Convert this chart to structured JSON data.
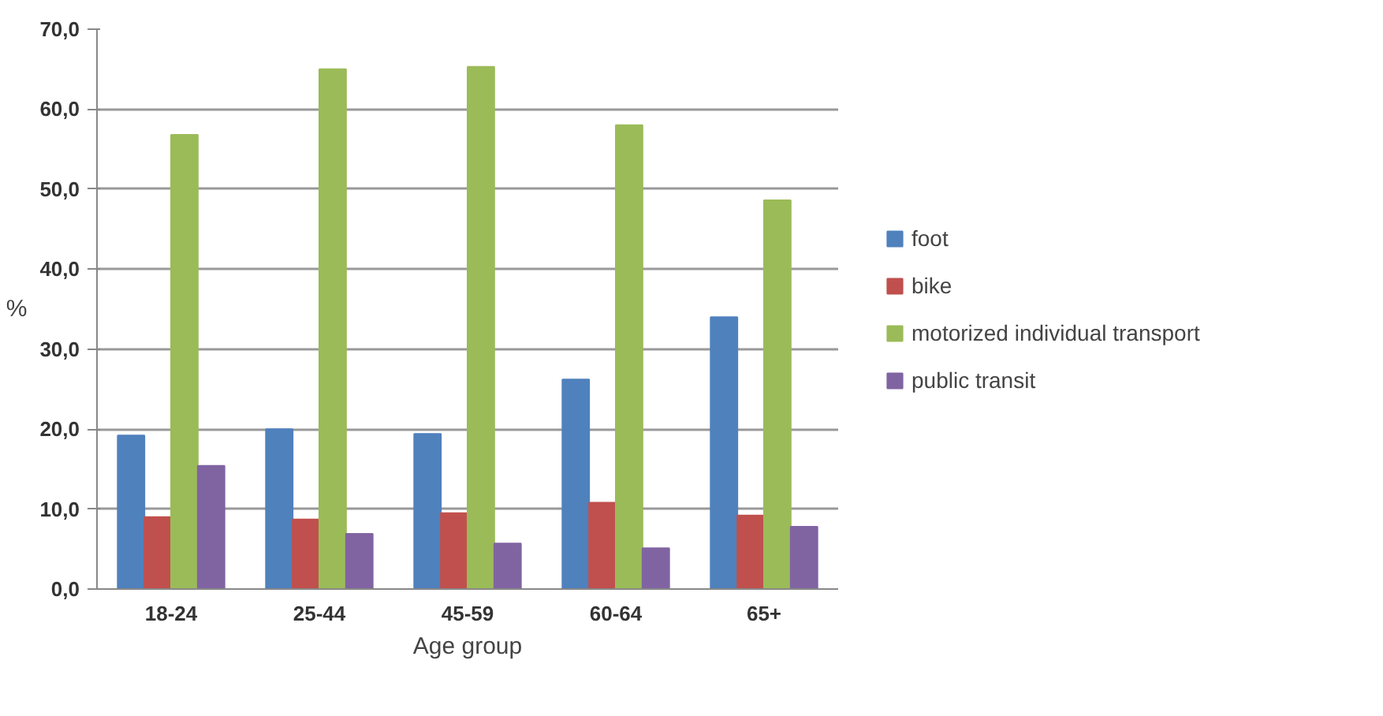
{
  "chart_data": {
    "type": "bar",
    "xlabel": "Age group",
    "ylabel": "%",
    "categories": [
      "18-24",
      "25-44",
      "45-59",
      "60-64",
      "65+"
    ],
    "series": [
      {
        "name": "foot",
        "color": "#4f81bd",
        "values": [
          19.2,
          20.0,
          19.4,
          26.2,
          34.0
        ]
      },
      {
        "name": "bike",
        "color": "#c0504d",
        "values": [
          9.0,
          8.7,
          9.5,
          10.8,
          9.2
        ]
      },
      {
        "name": "motorized individual transport",
        "color": "#9bbb59",
        "values": [
          56.8,
          65.0,
          65.3,
          58.0,
          48.6
        ]
      },
      {
        "name": "public transit",
        "color": "#8064a2",
        "values": [
          15.4,
          6.9,
          5.7,
          5.1,
          7.8
        ]
      }
    ],
    "ylim": [
      0,
      70
    ],
    "yticks": [
      {
        "value": 0,
        "label": "0,0"
      },
      {
        "value": 10,
        "label": "10,0"
      },
      {
        "value": 20,
        "label": "20,0"
      },
      {
        "value": 30,
        "label": "30,0"
      },
      {
        "value": 40,
        "label": "40,0"
      },
      {
        "value": 50,
        "label": "50,0"
      },
      {
        "value": 60,
        "label": "60,0"
      },
      {
        "value": 70,
        "label": "70,0"
      }
    ],
    "grid": "y",
    "legend": "right"
  }
}
